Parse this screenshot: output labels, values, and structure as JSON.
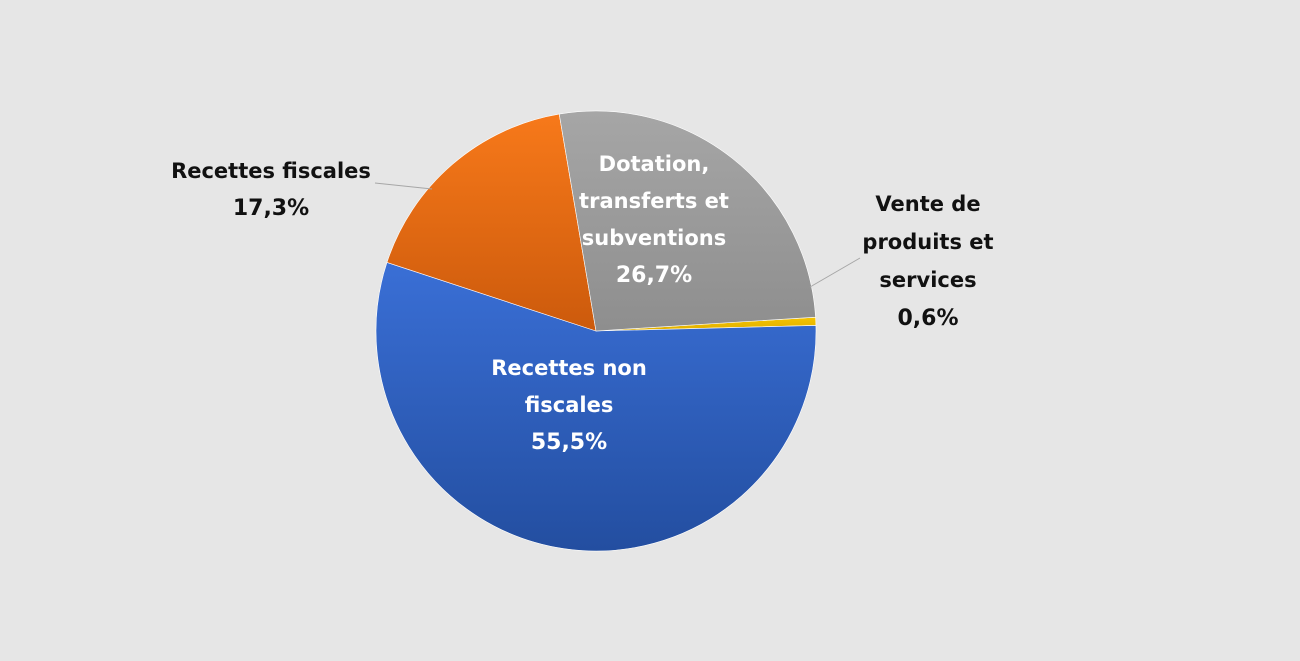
{
  "chart_data": {
    "type": "pie",
    "title": "",
    "legend": "none",
    "start_angle_deg": 0.2,
    "direction": "clockwise",
    "slices": [
      {
        "id": "vente",
        "label_lines": [
          "Vente de",
          "produits et",
          "services"
        ],
        "value": 0.6,
        "value_label": "0,6%",
        "color": "#f2c100"
      },
      {
        "id": "non-fiscales",
        "label_lines": [
          "Recettes non",
          "fiscales"
        ],
        "value": 55.5,
        "value_label": "55,5%",
        "color": "#2f64c8"
      },
      {
        "id": "fiscales",
        "label_lines": [
          "Recettes fiscales"
        ],
        "value": 17.3,
        "value_label": "17,3%",
        "color": "#f06d14"
      },
      {
        "id": "dotation",
        "label_lines": [
          "Dotation,",
          "transferts et",
          "subventions"
        ],
        "value": 26.7,
        "value_label": "26,7%",
        "color": "#9e9e9e"
      }
    ]
  }
}
